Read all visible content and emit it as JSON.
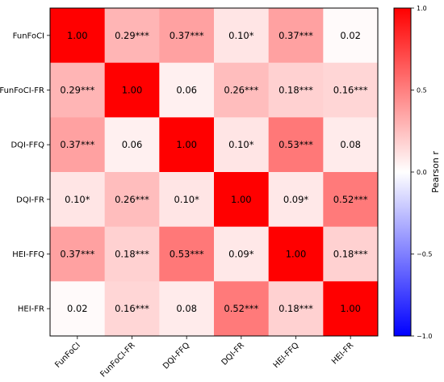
{
  "chart_data": {
    "type": "heatmap",
    "title": "",
    "xlabel": "",
    "ylabel": "",
    "categories": [
      "FunFoCI",
      "FunFoCI-FR",
      "DQI-FFQ",
      "DQI-FR",
      "HEI-FFQ",
      "HEI-FR"
    ],
    "values": [
      [
        1.0,
        0.29,
        0.37,
        0.1,
        0.37,
        0.02
      ],
      [
        0.29,
        1.0,
        0.06,
        0.26,
        0.18,
        0.16
      ],
      [
        0.37,
        0.06,
        1.0,
        0.1,
        0.53,
        0.08
      ],
      [
        0.1,
        0.26,
        0.1,
        1.0,
        0.09,
        0.52
      ],
      [
        0.37,
        0.18,
        0.53,
        0.09,
        1.0,
        0.18
      ],
      [
        0.02,
        0.16,
        0.08,
        0.52,
        0.18,
        1.0
      ]
    ],
    "cell_labels": [
      [
        "1.00",
        "0.29***",
        "0.37***",
        "0.10*",
        "0.37***",
        "0.02"
      ],
      [
        "0.29***",
        "1.00",
        "0.06",
        "0.26***",
        "0.18***",
        "0.16***"
      ],
      [
        "0.37***",
        "0.06",
        "1.00",
        "0.10*",
        "0.53***",
        "0.08"
      ],
      [
        "0.10*",
        "0.26***",
        "0.10*",
        "1.00",
        "0.09*",
        "0.52***"
      ],
      [
        "0.37***",
        "0.18***",
        "0.53***",
        "0.09*",
        "1.00",
        "0.18***"
      ],
      [
        "0.02",
        "0.16***",
        "0.08",
        "0.52***",
        "0.18***",
        "1.00"
      ]
    ],
    "colorbar": {
      "label": "Pearson r",
      "range": [
        -1.0,
        1.0
      ],
      "ticks": [
        -1.0,
        -0.5,
        0.0,
        0.5,
        1.0
      ],
      "tick_labels": [
        "−1.0",
        "−0.5",
        "0.0",
        "0.5",
        "1.0"
      ],
      "colormap": "bwr",
      "low_color": "#0000ff",
      "mid_color": "#ffffff",
      "high_color": "#ff0000"
    }
  }
}
